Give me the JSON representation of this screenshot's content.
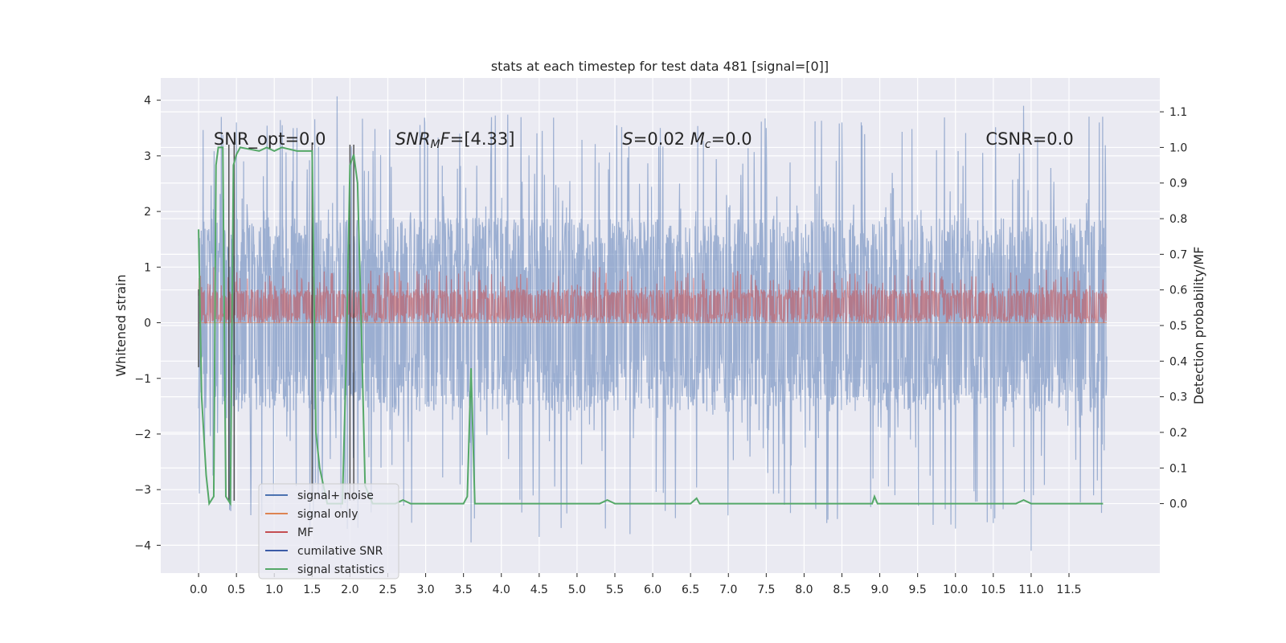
{
  "chart_data": {
    "type": "line",
    "title": "stats at each timestep for test data 481 [signal=[0]]",
    "ylabel": "Whitened strain",
    "y2label": "Detection probability/MF",
    "xlim": [
      -0.5,
      12.7
    ],
    "ylim": [
      -4.5,
      4.4
    ],
    "y2lim": [
      -0.195,
      1.195
    ],
    "x_ticks": [
      0.0,
      0.5,
      1.0,
      1.5,
      2.0,
      2.5,
      3.0,
      3.5,
      4.0,
      4.5,
      5.0,
      5.5,
      6.0,
      6.5,
      7.0,
      7.5,
      8.0,
      8.5,
      9.0,
      9.5,
      10.0,
      10.5,
      11.0,
      11.5
    ],
    "x_tick_labels": [
      "0.0",
      "0.5",
      "1.0",
      "1.5",
      "2.0",
      "2.5",
      "3.0",
      "3.5",
      "4.0",
      "4.5",
      "5.0",
      "5.5",
      "6.0",
      "6.5",
      "7.0",
      "7.5",
      "8.0",
      "8.5",
      "9.0",
      "9.5",
      "10.0",
      "10.5",
      "11.0",
      "11.5"
    ],
    "y_ticks": [
      4,
      3,
      2,
      1,
      0,
      -1,
      -2,
      -3,
      -4
    ],
    "y_tick_labels": [
      "4",
      "3",
      "2",
      "1",
      "0",
      "−1",
      "−2",
      "−3",
      "−4"
    ],
    "y2_ticks": [
      1.1,
      1.0,
      0.9,
      0.8,
      0.7,
      0.6,
      0.5,
      0.4,
      0.3,
      0.2,
      0.1,
      0.0
    ],
    "y2_tick_labels": [
      "1.1",
      "1.0",
      "0.9",
      "0.8",
      "0.7",
      "0.6",
      "0.5",
      "0.4",
      "0.3",
      "0.2",
      "0.1",
      "0.0"
    ],
    "grid": true,
    "annotations": [
      {
        "x": 0.2,
        "y": 3.2,
        "parts": [
          {
            "t": "SNR_opt=0.0"
          }
        ]
      },
      {
        "x": 2.6,
        "y": 3.2,
        "parts": [
          {
            "t": "SNR",
            "i": true
          },
          {
            "t": "M",
            "i": true,
            "sub": true
          },
          {
            "t": "F",
            "i": true
          },
          {
            "t": "=[4.33]"
          }
        ]
      },
      {
        "x": 5.6,
        "y": 3.2,
        "parts": [
          {
            "t": "S",
            "i": true
          },
          {
            "t": "=0.02   "
          },
          {
            "t": "M",
            "i": true
          },
          {
            "t": "c",
            "i": true,
            "sub": true
          },
          {
            "t": "=0.0"
          }
        ]
      },
      {
        "x": 10.4,
        "y": 3.2,
        "parts": [
          {
            "t": "CSNR=0.0"
          }
        ]
      }
    ],
    "legend": {
      "placement": "lower-left",
      "entries": [
        {
          "label": "signal+ noise",
          "color": "#4c72b0"
        },
        {
          "label": "signal only",
          "color": "#dd8452"
        },
        {
          "label": "MF",
          "color": "#c44e52"
        },
        {
          "label": "cumilative SNR",
          "color": "#3b5ba7"
        },
        {
          "label": "signal statistics",
          "color": "#55a868"
        }
      ]
    },
    "series": [
      {
        "name": "signal+ noise",
        "axis": "left",
        "kind": "dense-noise",
        "color": "#4c72b0",
        "alpha": 0.5,
        "x_range": [
          0.0,
          12.0
        ],
        "y_core_range": [
          -1.6,
          1.9
        ],
        "y_max": 4.07,
        "y_min": -4.1,
        "y_peaks": [
          [
            0.3,
            3.7
          ],
          [
            0.5,
            3.6
          ],
          [
            1.3,
            3.5
          ],
          [
            1.83,
            4.07
          ],
          [
            3.45,
            3.4
          ],
          [
            4.5,
            3.95
          ],
          [
            6.1,
            3.5
          ],
          [
            7.5,
            3.5
          ],
          [
            8.5,
            3.6
          ],
          [
            10.0,
            3.5
          ],
          [
            10.9,
            3.9
          ],
          [
            11.9,
            3.6
          ],
          [
            3.6,
            -3.95
          ],
          [
            4.5,
            -3.85
          ],
          [
            5.7,
            -3.8
          ],
          [
            8.3,
            -3.6
          ],
          [
            9.2,
            -3.1
          ],
          [
            10.0,
            -3.7
          ],
          [
            10.5,
            -3.6
          ],
          [
            11.0,
            -4.1
          ]
        ]
      },
      {
        "name": "signal only",
        "axis": "left",
        "kind": "flat",
        "color": "#dd8452",
        "points": [
          [
            0.0,
            0.0
          ],
          [
            12.0,
            0.0
          ]
        ]
      },
      {
        "name": "MF",
        "axis": "left",
        "kind": "dense-noise",
        "color": "#c44e52",
        "alpha": 0.55,
        "x_range": [
          0.0,
          12.0
        ],
        "y_core_range": [
          0.0,
          0.6
        ],
        "y_max": 1.0,
        "y_min": 0.0,
        "y_peaks": [
          [
            0.2,
            1.0
          ],
          [
            1.3,
            0.95
          ],
          [
            2.0,
            0.9
          ],
          [
            5.3,
            1.0
          ],
          [
            7.1,
            0.85
          ],
          [
            8.2,
            0.9
          ],
          [
            11.2,
            0.95
          ]
        ]
      },
      {
        "name": "cumilative SNR",
        "axis": "left",
        "kind": "segments",
        "color": "#2b2b2b",
        "segments": [
          [
            [
              0.0,
              0.6
            ],
            [
              0.0,
              -0.8
            ]
          ],
          [
            [
              0.4,
              3.2
            ],
            [
              0.4,
              -3.2
            ]
          ],
          [
            [
              0.47,
              3.2
            ],
            [
              0.47,
              -3.2
            ]
          ],
          [
            [
              1.5,
              3.2
            ],
            [
              1.5,
              -3.2
            ]
          ],
          [
            [
              2.0,
              3.2
            ],
            [
              2.0,
              -3.2
            ]
          ],
          [
            [
              2.05,
              3.2
            ],
            [
              2.05,
              -3.2
            ]
          ]
        ]
      },
      {
        "name": "signal statistics",
        "axis": "right",
        "kind": "line",
        "color": "#55a868",
        "points": [
          [
            0.0,
            0.77
          ],
          [
            0.04,
            0.3
          ],
          [
            0.1,
            0.08
          ],
          [
            0.14,
            0.0
          ],
          [
            0.2,
            0.02
          ],
          [
            0.23,
            0.95
          ],
          [
            0.26,
            1.0
          ],
          [
            0.32,
            1.0
          ],
          [
            0.36,
            0.02
          ],
          [
            0.42,
            0.0
          ],
          [
            0.46,
            0.95
          ],
          [
            0.5,
            0.98
          ],
          [
            0.55,
            1.0
          ],
          [
            0.8,
            0.99
          ],
          [
            0.9,
            1.0
          ],
          [
            1.0,
            0.99
          ],
          [
            1.1,
            1.0
          ],
          [
            1.3,
            0.99
          ],
          [
            1.5,
            0.99
          ],
          [
            1.55,
            0.2
          ],
          [
            1.6,
            0.1
          ],
          [
            1.7,
            0.0
          ],
          [
            1.9,
            0.0
          ],
          [
            1.95,
            0.4
          ],
          [
            2.0,
            0.95
          ],
          [
            2.05,
            0.98
          ],
          [
            2.1,
            0.9
          ],
          [
            2.15,
            0.5
          ],
          [
            2.2,
            0.05
          ],
          [
            2.3,
            0.0
          ],
          [
            2.6,
            0.0
          ],
          [
            2.7,
            0.01
          ],
          [
            2.8,
            0.0
          ],
          [
            3.5,
            0.0
          ],
          [
            3.55,
            0.02
          ],
          [
            3.6,
            0.38
          ],
          [
            3.65,
            0.0
          ],
          [
            3.8,
            0.0
          ],
          [
            4.0,
            0.0
          ],
          [
            5.3,
            0.0
          ],
          [
            5.4,
            0.01
          ],
          [
            5.5,
            0.0
          ],
          [
            6.5,
            0.0
          ],
          [
            6.58,
            0.015
          ],
          [
            6.62,
            0.0
          ],
          [
            8.9,
            0.0
          ],
          [
            8.93,
            0.02
          ],
          [
            8.97,
            0.0
          ],
          [
            9.2,
            0.0
          ],
          [
            10.8,
            0.0
          ],
          [
            10.9,
            0.01
          ],
          [
            11.0,
            0.0
          ],
          [
            11.95,
            0.0
          ]
        ]
      }
    ]
  }
}
